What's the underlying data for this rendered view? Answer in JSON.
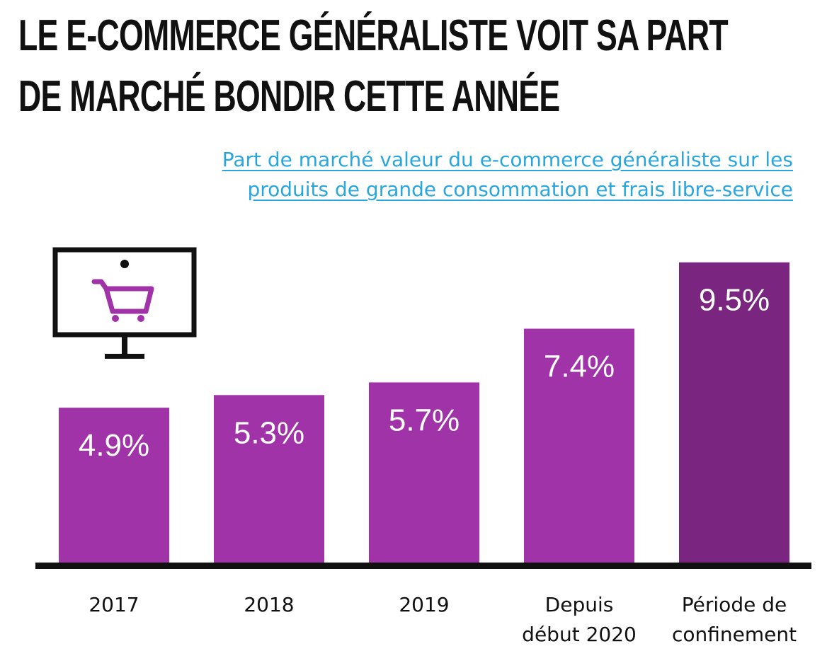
{
  "title": {
    "line1": "LE E-COMMERCE GÉNÉRALISTE  VOIT SA PART",
    "line2": "DE MARCHÉ BONDIR CETTE ANNÉE"
  },
  "subtitle": {
    "line1": "Part de marché  valeur du e-commerce généraliste sur les",
    "line2": "produits de grande consommation et frais libre-service"
  },
  "icon": "computer-shopping-cart-icon",
  "colors": {
    "bar": "#a033a8",
    "bar_highlight": "#7a2680",
    "baseline": "#111111",
    "subtitle": "#2aa6df"
  },
  "chart_data": {
    "type": "bar",
    "categories": [
      [
        "2017"
      ],
      [
        "2018"
      ],
      [
        "2019"
      ],
      [
        "Depuis",
        "début 2020"
      ],
      [
        "Période de",
        "confinement"
      ]
    ],
    "values": [
      4.9,
      5.3,
      5.7,
      7.4,
      9.5
    ],
    "value_labels": [
      "4.9%",
      "5.3%",
      "5.7%",
      "7.4%",
      "9.5%"
    ],
    "highlight_index": 4,
    "ylim": [
      0,
      10.3
    ],
    "grid": false
  }
}
